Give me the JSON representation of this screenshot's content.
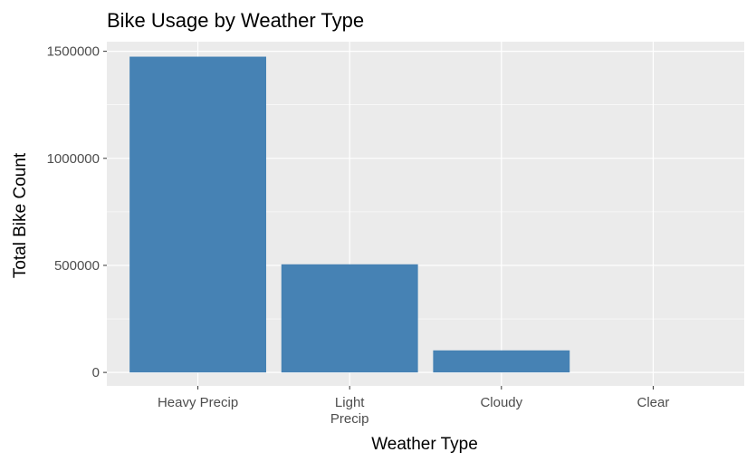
{
  "chart_data": {
    "type": "bar",
    "title": "Bike Usage by Weather Type",
    "xlabel": "Weather Type",
    "ylabel": "Total Bike Count",
    "categories": [
      "Heavy Precip",
      "Light Precip",
      "Cloudy",
      "Clear"
    ],
    "category_lines": [
      [
        "Heavy Precip"
      ],
      [
        "Light",
        "Precip"
      ],
      [
        "Cloudy"
      ],
      [
        "Clear"
      ]
    ],
    "values": [
      1475000,
      505000,
      103000,
      0
    ],
    "ylim": [
      -63000,
      1545000
    ],
    "yticks": [
      0,
      500000,
      1000000,
      1500000
    ],
    "ytick_labels": [
      "0",
      "500000",
      "1000000",
      "1500000"
    ],
    "grid": true,
    "bar_color": "#4682B4",
    "panel_color": "#EBEBEB"
  }
}
